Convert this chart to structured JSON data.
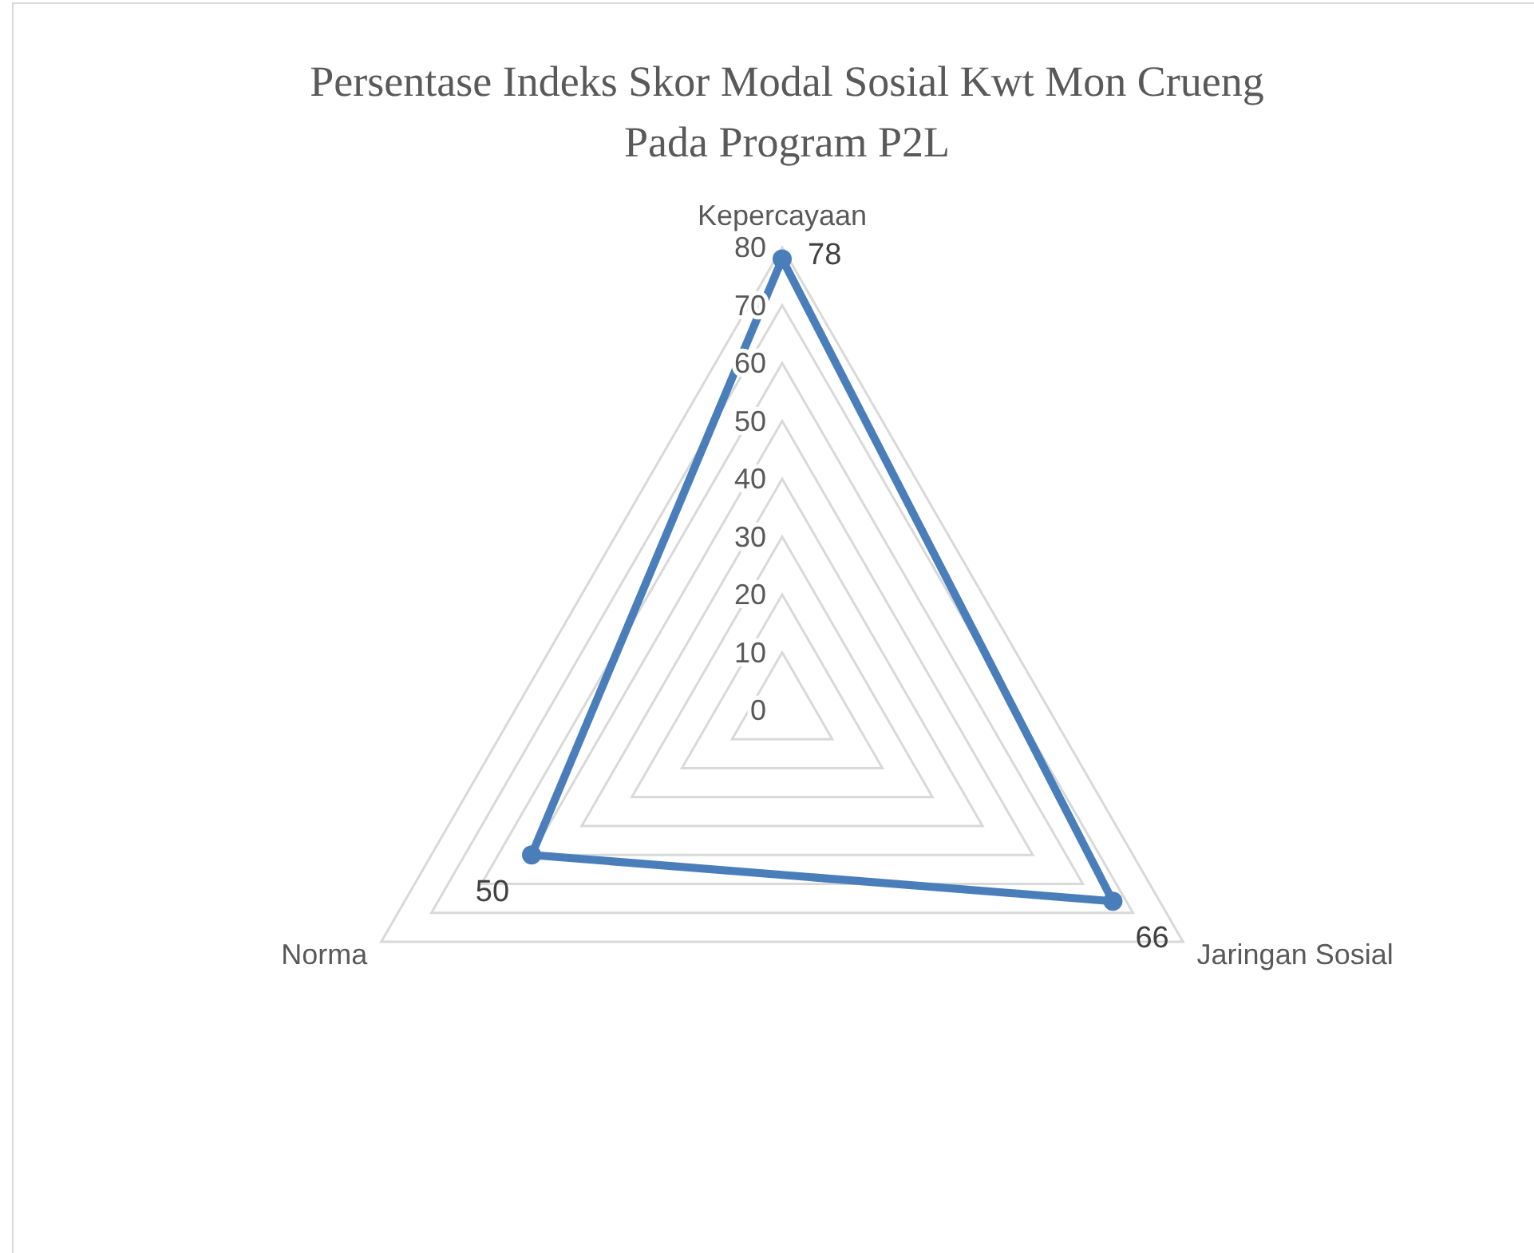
{
  "chart_data": {
    "type": "radar",
    "title": "Persentase Indeks Skor Modal Sosial Kwt Mon Crueng Pada Program P2L",
    "categories": [
      "Kepercayaan",
      "Jaringan Sosial",
      "Norma"
    ],
    "series": [
      {
        "color": "#4a7ebb",
        "values": [
          78,
          66,
          50
        ]
      }
    ],
    "ylim": [
      0,
      80
    ],
    "yticks": [
      0,
      10,
      20,
      30,
      40,
      50,
      60,
      70,
      80
    ],
    "grid": true,
    "marker": "circle",
    "data_labels": true
  }
}
